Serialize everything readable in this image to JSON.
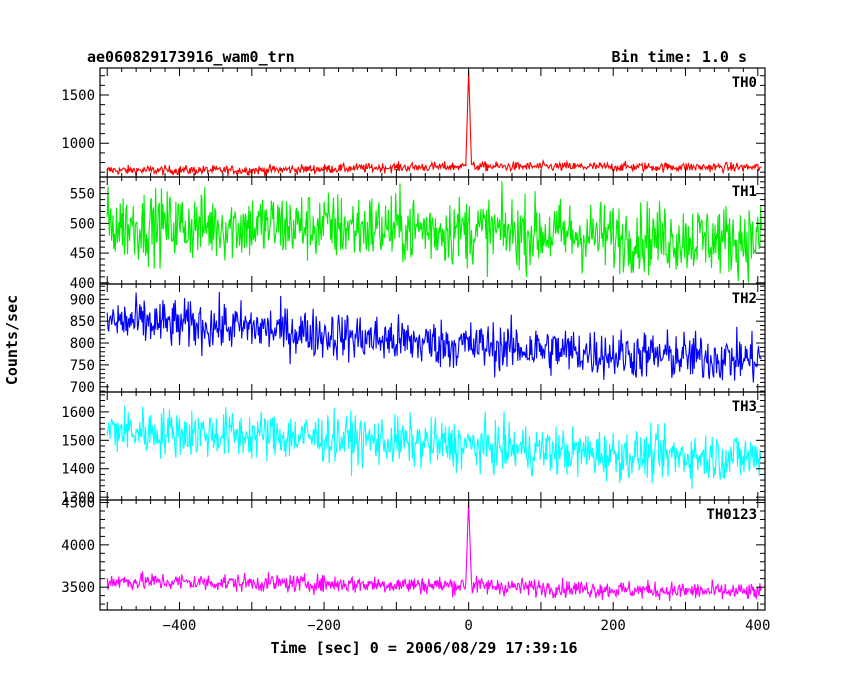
{
  "header": {
    "title_left": "ae060829173916_wam0_trn",
    "title_right": "Bin time: 1.0 s"
  },
  "chart_data": {
    "type": "line",
    "xlabel": "Time [sec] 0 = 2006/08/29 17:39:16",
    "ylabel": "Counts/sec",
    "xlim": [
      -510,
      410
    ],
    "xticks": [
      -400,
      -200,
      0,
      200,
      400
    ],
    "bin_time_s": 1.0,
    "panels": [
      {
        "name": "TH0",
        "color": "#ff0000",
        "ylim": [
          650,
          1780
        ],
        "yticks": [
          1000,
          1500
        ],
        "baseline_points": [
          [
            -500,
            720
          ],
          [
            -300,
            720
          ],
          [
            -100,
            750
          ],
          [
            0,
            760
          ],
          [
            200,
            755
          ],
          [
            405,
            750
          ]
        ],
        "noise": 35,
        "spike": {
          "x": 0,
          "peak": 1760,
          "width": 3
        }
      },
      {
        "name": "TH1",
        "color": "#00ee00",
        "ylim": [
          398,
          578
        ],
        "yticks": [
          400,
          450,
          500,
          550
        ],
        "baseline_points": [
          [
            -500,
            497
          ],
          [
            -200,
            495
          ],
          [
            0,
            488
          ],
          [
            200,
            478
          ],
          [
            405,
            472
          ]
        ],
        "noise": 42
      },
      {
        "name": "TH2",
        "color": "#0000ff",
        "ylim": [
          688,
          935
        ],
        "yticks": [
          700,
          750,
          800,
          850,
          900
        ],
        "baseline_points": [
          [
            -500,
            850
          ],
          [
            -300,
            835
          ],
          [
            -100,
            805
          ],
          [
            0,
            795
          ],
          [
            200,
            775
          ],
          [
            405,
            762
          ]
        ],
        "noise": 40
      },
      {
        "name": "TH3",
        "color": "#00ffff",
        "ylim": [
          1290,
          1670
        ],
        "yticks": [
          1300,
          1400,
          1500,
          1600
        ],
        "baseline_points": [
          [
            -500,
            1535
          ],
          [
            -200,
            1510
          ],
          [
            0,
            1480
          ],
          [
            200,
            1450
          ],
          [
            405,
            1440
          ]
        ],
        "noise": 62
      },
      {
        "name": "TH0123",
        "color": "#ff00ff",
        "ylim": [
          3230,
          4530
        ],
        "yticks": [
          3500,
          4000,
          4500
        ],
        "baseline_points": [
          [
            -500,
            3570
          ],
          [
            -200,
            3540
          ],
          [
            0,
            3520
          ],
          [
            200,
            3470
          ],
          [
            405,
            3440
          ]
        ],
        "noise": 75,
        "spike": {
          "x": 0,
          "peak": 4520,
          "width": 3
        }
      }
    ]
  }
}
